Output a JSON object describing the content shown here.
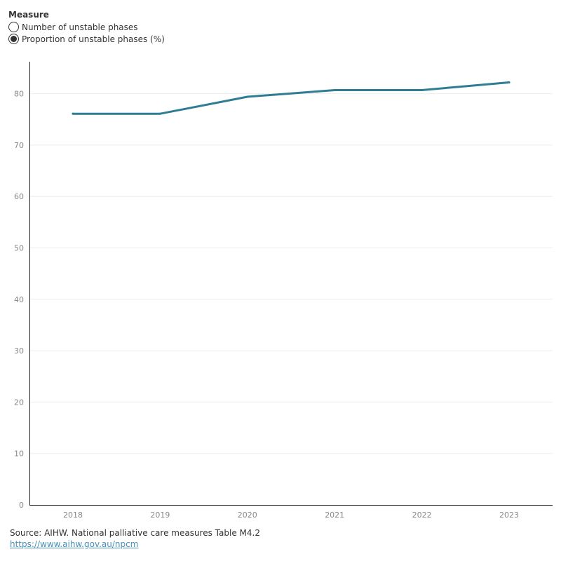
{
  "measure": {
    "title": "Measure",
    "options": [
      {
        "label": "Number of unstable phases",
        "selected": false
      },
      {
        "label": "Proportion of unstable phases (%)",
        "selected": true
      }
    ]
  },
  "chart_data": {
    "type": "line",
    "categories": [
      "2018",
      "2019",
      "2020",
      "2021",
      "2022",
      "2023"
    ],
    "series": [
      {
        "values": [
          76.1,
          76.1,
          79.4,
          80.7,
          80.7,
          82.2
        ],
        "color": "#2e7d94"
      }
    ],
    "yticks": [
      0,
      10,
      20,
      30,
      40,
      50,
      60,
      70,
      80
    ],
    "ylim": [
      0,
      86.7
    ],
    "grid": true,
    "title": "",
    "xlabel": "",
    "ylabel": ""
  },
  "footer": {
    "source": "Source: AIHW. National palliative care measures Table M4.2",
    "link": "https://www.aihw.gov.au/npcm"
  }
}
